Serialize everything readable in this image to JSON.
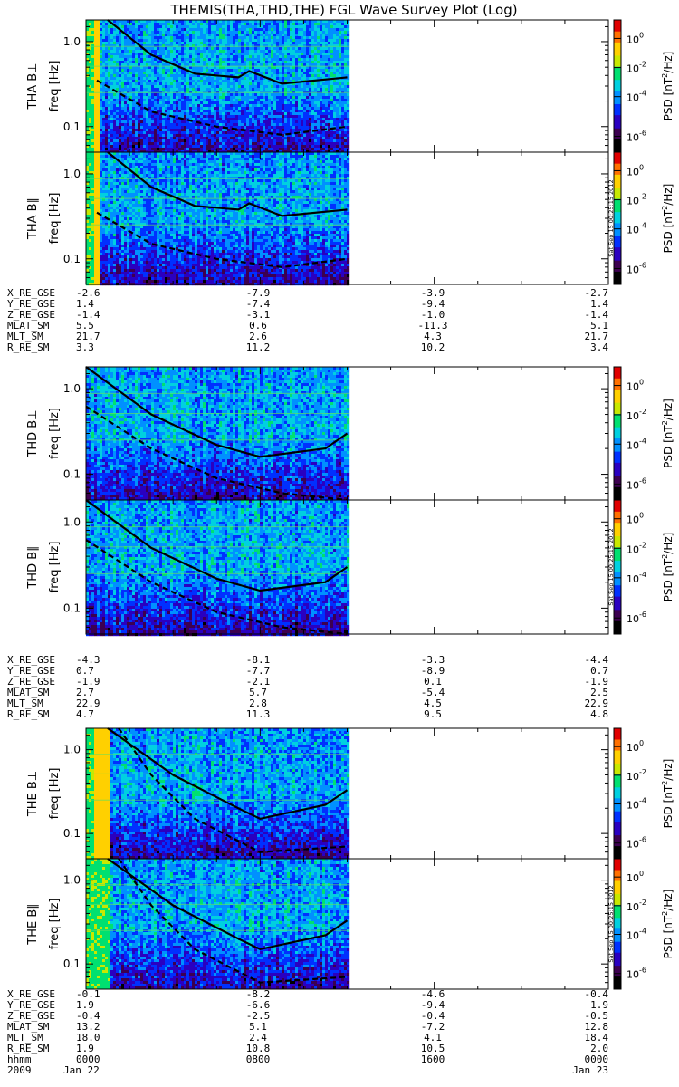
{
  "title": "THEMIS(THA,THD,THE) FGL Wave Survey Plot (Log)",
  "colorbar": {
    "label_prefix": "PSD [nT",
    "label_sup": "2",
    "label_suffix": "/Hz]",
    "ticks": [
      {
        "base": "10",
        "exp": "0"
      },
      {
        "base": "10",
        "exp": "-2"
      },
      {
        "base": "10",
        "exp": "-4"
      },
      {
        "base": "10",
        "exp": "-6"
      }
    ],
    "colors": [
      "#000000",
      "#3c0050",
      "#2a00c0",
      "#0030ff",
      "#0090ff",
      "#00d0e0",
      "#00e070",
      "#c8e800",
      "#ffd000",
      "#ff7000",
      "#e00000"
    ]
  },
  "freq_ticks": [
    "1.0",
    "0.1"
  ],
  "side_stamp": "Sat Sep 15 00:25:15 2012",
  "probes": [
    {
      "id": "THA",
      "panels": [
        {
          "label": "THA B⊥",
          "freq_label": "freq [Hz]"
        },
        {
          "label": "THA B∥",
          "freq_label": "freq [Hz]"
        }
      ],
      "ephemeris": [
        {
          "name": "X_RE_GSE",
          "values": [
            "-2.6",
            "-7.9",
            "-3.9",
            "-2.7"
          ]
        },
        {
          "name": "Y_RE_GSE",
          "values": [
            "1.4",
            "-7.4",
            "-9.4",
            "1.4"
          ]
        },
        {
          "name": "Z_RE_GSE",
          "values": [
            "-1.4",
            "-3.1",
            "-1.0",
            "-1.4"
          ]
        },
        {
          "name": "MLAT_SM",
          "values": [
            "5.5",
            "0.6",
            "-11.3",
            "5.1"
          ]
        },
        {
          "name": "MLT_SM",
          "values": [
            "21.7",
            "2.6",
            "4.3",
            "21.7"
          ]
        },
        {
          "name": "R_RE_SM",
          "values": [
            "3.3",
            "11.2",
            "10.2",
            "3.4"
          ]
        }
      ]
    },
    {
      "id": "THD",
      "panels": [
        {
          "label": "THD B⊥",
          "freq_label": "freq [Hz]"
        },
        {
          "label": "THD B∥",
          "freq_label": "freq [Hz]"
        }
      ],
      "ephemeris": [
        {
          "name": "X_RE_GSE",
          "values": [
            "-4.3",
            "-8.1",
            "-3.3",
            "-4.4"
          ]
        },
        {
          "name": "Y_RE_GSE",
          "values": [
            "0.7",
            "-7.7",
            "-8.9",
            "0.7"
          ]
        },
        {
          "name": "Z_RE_GSE",
          "values": [
            "-1.9",
            "-2.1",
            "0.1",
            "-1.9"
          ]
        },
        {
          "name": "MLAT_SM",
          "values": [
            "2.7",
            "5.7",
            "-5.4",
            "2.5"
          ]
        },
        {
          "name": "MLT_SM",
          "values": [
            "22.9",
            "2.8",
            "4.5",
            "22.9"
          ]
        },
        {
          "name": "R_RE_SM",
          "values": [
            "4.7",
            "11.3",
            "9.5",
            "4.8"
          ]
        }
      ]
    },
    {
      "id": "THE",
      "panels": [
        {
          "label": "THE B⊥",
          "freq_label": "freq [Hz]"
        },
        {
          "label": "THE B∥",
          "freq_label": "freq [Hz]"
        }
      ],
      "ephemeris": [
        {
          "name": "X_RE_GSE",
          "values": [
            "-0.1",
            "-8.2",
            "-4.6",
            "-0.4"
          ]
        },
        {
          "name": "Y_RE_GSE",
          "values": [
            "1.9",
            "-6.6",
            "-9.4",
            "1.9"
          ]
        },
        {
          "name": "Z_RE_GSE",
          "values": [
            "-0.4",
            "-2.5",
            "-0.4",
            "-0.5"
          ]
        },
        {
          "name": "MLAT_SM",
          "values": [
            "13.2",
            "5.1",
            "-7.2",
            "12.8"
          ]
        },
        {
          "name": "MLT_SM",
          "values": [
            "18.0",
            "2.4",
            "4.1",
            "18.4"
          ]
        },
        {
          "name": "R_RE_SM",
          "values": [
            "1.9",
            "10.8",
            "10.5",
            "2.0"
          ]
        }
      ]
    }
  ],
  "time_axis": {
    "row1_label": "hhmm",
    "row1_values": [
      "0000",
      "0800",
      "1600",
      "0000"
    ],
    "row2_label": "2009",
    "row2_values": [
      "Jan 22",
      "",
      "",
      "Jan 23"
    ]
  },
  "chart_data": {
    "type": "heatmap",
    "title": "THEMIS(THA,THD,THE) FGL Wave Survey Plot (Log)",
    "x_axis": {
      "label": "hhmm",
      "ticks": [
        "0000",
        "0800",
        "1600",
        "0000"
      ],
      "range_hours": [
        0,
        24
      ]
    },
    "y_axis": {
      "label": "freq [Hz]",
      "scale": "log",
      "ticks": [
        1.0,
        0.1
      ],
      "range": [
        0.05,
        1.8
      ]
    },
    "color_axis": {
      "label": "PSD [nT^2/Hz]",
      "scale": "log",
      "ticks": [
        1,
        0.01,
        0.0001,
        1e-06
      ]
    },
    "data_coverage_hours": [
      0,
      12.1
    ],
    "panels": [
      {
        "probe": "THA",
        "component": "perp",
        "saturated_hours": [
          0.3,
          0.55
        ],
        "green_hours": [
          0,
          0.3
        ]
      },
      {
        "probe": "THA",
        "component": "parallel",
        "saturated_hours": [
          0.3,
          0.55
        ],
        "green_hours": [
          0,
          0.3
        ]
      },
      {
        "probe": "THD",
        "component": "perp",
        "saturated_hours": [],
        "green_hours": []
      },
      {
        "probe": "THD",
        "component": "parallel",
        "saturated_hours": [],
        "green_hours": []
      },
      {
        "probe": "THE",
        "component": "perp",
        "saturated_hours": [
          0.3,
          1.0
        ],
        "green_hours": [
          0,
          1.0
        ]
      },
      {
        "probe": "THE",
        "component": "parallel",
        "saturated_hours": [],
        "green_hours": [
          0,
          1.0
        ]
      }
    ],
    "overlay_lines": [
      {
        "probe": "THA",
        "solid_freq_hz": [
          [
            1,
            2.0
          ],
          [
            3,
            0.7
          ],
          [
            5,
            0.42
          ],
          [
            7,
            0.38
          ],
          [
            7.5,
            0.45
          ],
          [
            9,
            0.32
          ],
          [
            12,
            0.38
          ]
        ],
        "dashed_freq_hz": [
          [
            0.5,
            0.35
          ],
          [
            3,
            0.15
          ],
          [
            6,
            0.1
          ],
          [
            9,
            0.08
          ],
          [
            12,
            0.1
          ]
        ]
      },
      {
        "probe": "THD",
        "solid_freq_hz": [
          [
            0,
            2.0
          ],
          [
            3,
            0.5
          ],
          [
            6,
            0.22
          ],
          [
            8,
            0.16
          ],
          [
            11,
            0.2
          ],
          [
            12,
            0.3
          ]
        ],
        "dashed_freq_hz": [
          [
            0,
            0.62
          ],
          [
            3,
            0.2
          ],
          [
            6,
            0.09
          ],
          [
            9,
            0.06
          ],
          [
            12,
            0.05
          ]
        ]
      },
      {
        "probe": "THE",
        "solid_freq_hz": [
          [
            1,
            2.0
          ],
          [
            4,
            0.5
          ],
          [
            7,
            0.2
          ],
          [
            8,
            0.15
          ],
          [
            11,
            0.22
          ],
          [
            12,
            0.33
          ]
        ],
        "dashed_freq_hz": [
          [
            1.5,
            2.0
          ],
          [
            3,
            0.5
          ],
          [
            5,
            0.15
          ],
          [
            8,
            0.06
          ],
          [
            12,
            0.07
          ]
        ]
      }
    ]
  }
}
